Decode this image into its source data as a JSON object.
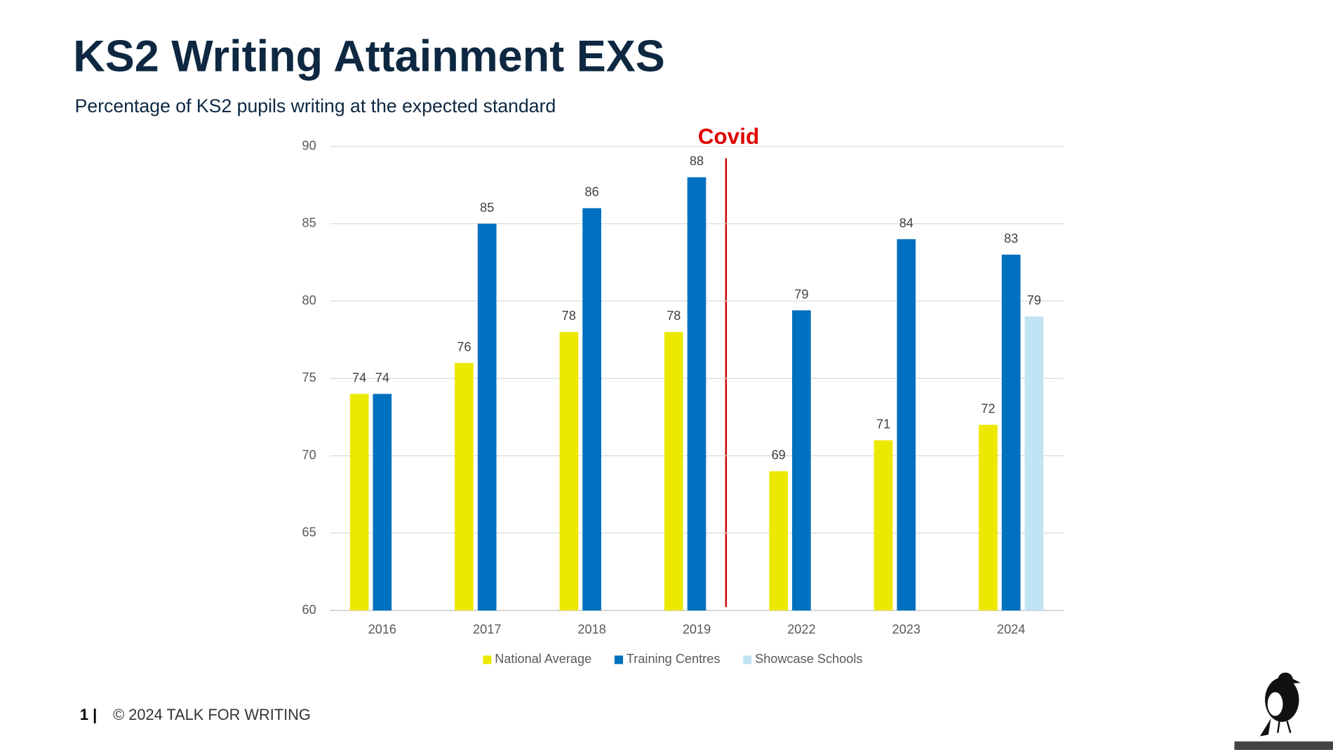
{
  "chart_data": {
    "type": "bar",
    "title": "KS2 Writing Attainment EXS",
    "subtitle": "Percentage of KS2 pupils writing at the expected standard",
    "annotation": "Covid",
    "categories": [
      "2016",
      "2017",
      "2018",
      "2019",
      "2022",
      "2023",
      "2024"
    ],
    "series": [
      {
        "name": "National Average",
        "color": "#ede800",
        "values": [
          74,
          76,
          78,
          78,
          69,
          71,
          72
        ]
      },
      {
        "name": "Training Centres",
        "color": "#0070c0",
        "values": [
          74,
          85,
          86,
          88,
          79.4,
          84,
          83
        ],
        "value_labels": [
          "74",
          "85",
          "86",
          "88",
          "79",
          "84",
          "83"
        ]
      },
      {
        "name": "Showcase Schools",
        "color": "#c0e4f4",
        "values": [
          null,
          null,
          null,
          null,
          null,
          null,
          79
        ]
      }
    ],
    "ylim": [
      60,
      90
    ],
    "yticks": [
      60,
      65,
      70,
      75,
      80,
      85,
      90
    ],
    "grid": true,
    "legend": "bottom"
  },
  "footer": {
    "page": "1 |",
    "copyright": "© 2024 TALK FOR WRITING"
  }
}
